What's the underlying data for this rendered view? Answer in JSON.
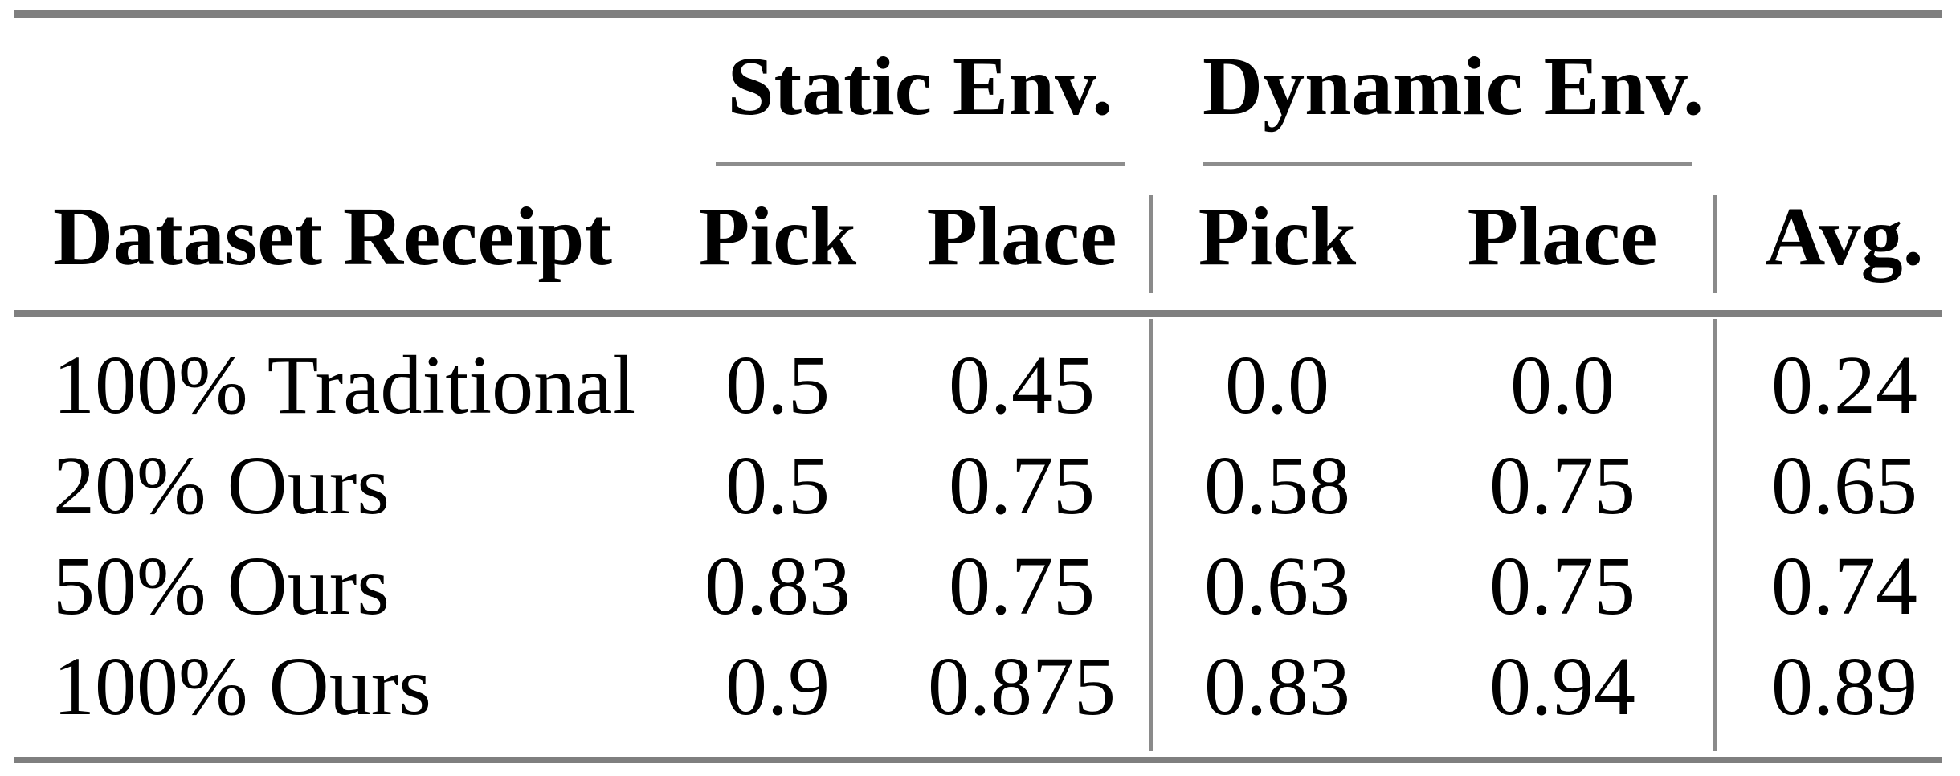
{
  "colors": {
    "background": "#ffffff",
    "text": "#000000",
    "rule_heavy": "#7f7f7f",
    "rule_light": "#8d8d8d"
  },
  "table": {
    "column_groups": {
      "static": "Static Env.",
      "dynamic": "Dynamic Env."
    },
    "headers": {
      "row_label": "Dataset Receipt",
      "static_pick": "Pick",
      "static_place": "Place",
      "dynamic_pick": "Pick",
      "dynamic_place": "Place",
      "avg": "Avg."
    },
    "rows": [
      {
        "label": "100% Traditional",
        "static_pick": "0.5",
        "static_place": "0.45",
        "dynamic_pick": "0.0",
        "dynamic_place": "0.0",
        "avg": "0.24"
      },
      {
        "label": "20% Ours",
        "static_pick": "0.5",
        "static_place": "0.75",
        "dynamic_pick": "0.58",
        "dynamic_place": "0.75",
        "avg": "0.65"
      },
      {
        "label": "50% Ours",
        "static_pick": "0.83",
        "static_place": "0.75",
        "dynamic_pick": "0.63",
        "dynamic_place": "0.75",
        "avg": "0.74"
      },
      {
        "label": "100% Ours",
        "static_pick": "0.9",
        "static_place": "0.875",
        "dynamic_pick": "0.83",
        "dynamic_place": "0.94",
        "avg": "0.89"
      }
    ]
  },
  "chart_data": {
    "type": "table",
    "title": "",
    "column_group_labels": [
      "Static Env.",
      "Dynamic Env."
    ],
    "columns": [
      "Dataset Receipt",
      "Static Env. Pick",
      "Static Env. Place",
      "Dynamic Env. Pick",
      "Dynamic Env. Place",
      "Avg."
    ],
    "rows": [
      [
        "100% Traditional",
        0.5,
        0.45,
        0.0,
        0.0,
        0.24
      ],
      [
        "20% Ours",
        0.5,
        0.75,
        0.58,
        0.75,
        0.65
      ],
      [
        "50% Ours",
        0.83,
        0.75,
        0.63,
        0.75,
        0.74
      ],
      [
        "100% Ours",
        0.9,
        0.875,
        0.83,
        0.94,
        0.89
      ]
    ]
  }
}
